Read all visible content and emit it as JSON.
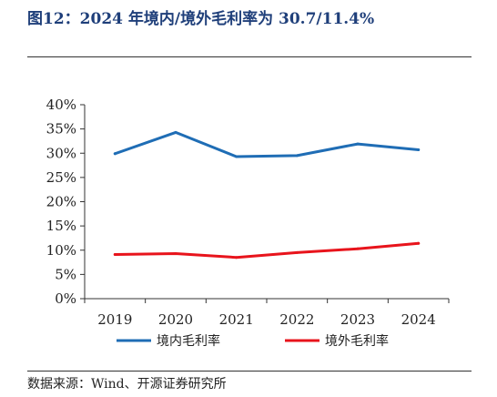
{
  "header": {
    "title": "图12：2024 年境内/境外毛利率为 30.7/11.4%"
  },
  "footer": {
    "source": "数据来源：Wind、开源证券研究所"
  },
  "chart_data": {
    "type": "line",
    "title": "",
    "xlabel": "",
    "ylabel": "",
    "x": [
      "2019",
      "2020",
      "2021",
      "2022",
      "2023",
      "2024"
    ],
    "ylim": [
      0,
      40
    ],
    "yticks": [
      "0%",
      "5%",
      "10%",
      "15%",
      "20%",
      "25%",
      "30%",
      "35%",
      "40%"
    ],
    "grid": false,
    "legend_position": "bottom",
    "series": [
      {
        "name": "境内毛利率",
        "color": "#1f6db5",
        "values": [
          29.9,
          34.3,
          29.3,
          29.5,
          31.9,
          30.7
        ]
      },
      {
        "name": "境外毛利率",
        "color": "#e8141c",
        "values": [
          9.1,
          9.3,
          8.5,
          9.5,
          10.3,
          11.4
        ]
      }
    ]
  }
}
